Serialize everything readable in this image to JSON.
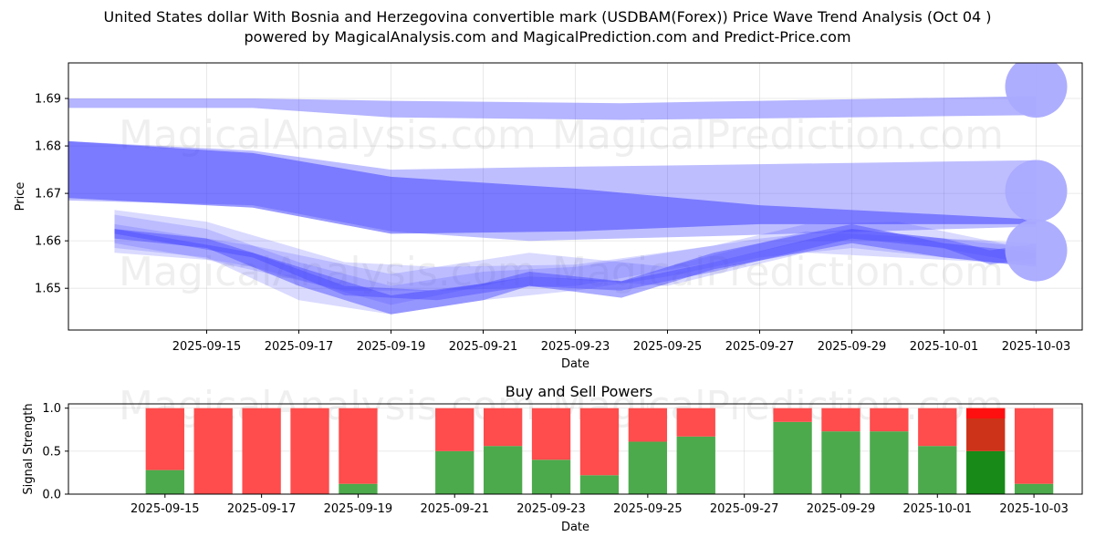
{
  "title_line1": "United States dollar With Bosnia and Herzegovina convertible mark (USDBAM(Forex)) Price Wave Trend Analysis (Oct 04 )",
  "title_line2": "powered by MagicalAnalysis.com and MagicalPrediction.com and Predict-Price.com",
  "watermarks": [
    "MagicalAnalysis.com",
    "MagicalPrediction.com"
  ],
  "chart_data": [
    {
      "type": "area",
      "name": "price-wave",
      "xlabel": "Date",
      "ylabel": "Price",
      "ylim": [
        1.6412,
        1.6975
      ],
      "xlim": [
        "2025-09-12",
        "2025-10-04"
      ],
      "x_ticks": [
        "2025-09-15",
        "2025-09-17",
        "2025-09-19",
        "2025-09-21",
        "2025-09-23",
        "2025-09-25",
        "2025-09-27",
        "2025-09-29",
        "2025-10-01",
        "2025-10-03"
      ],
      "y_ticks": [
        1.65,
        1.66,
        1.67,
        1.68,
        1.69
      ],
      "grid": true,
      "colors": {
        "band": "#4444ff",
        "marker": "#aaaaff"
      },
      "bands": [
        {
          "x": [
            "2025-09-12",
            "2025-09-16",
            "2025-09-19",
            "2025-09-24",
            "2025-09-27",
            "2025-10-03"
          ],
          "upper": [
            1.69,
            1.69,
            1.6895,
            1.689,
            1.6895,
            1.6905
          ],
          "lower": [
            1.688,
            1.688,
            1.686,
            1.6855,
            1.6858,
            1.6865
          ],
          "opacity": 0.4
        },
        {
          "x": [
            "2025-09-12",
            "2025-09-16",
            "2025-09-19",
            "2025-09-22",
            "2025-09-26",
            "2025-10-03"
          ],
          "upper": [
            1.681,
            1.679,
            1.675,
            1.6755,
            1.676,
            1.677
          ],
          "lower": [
            1.6685,
            1.6675,
            1.662,
            1.66,
            1.661,
            1.663
          ],
          "opacity": 0.35
        },
        {
          "x": [
            "2025-09-12",
            "2025-09-16",
            "2025-09-19",
            "2025-09-23",
            "2025-09-27",
            "2025-10-03"
          ],
          "upper": [
            1.681,
            1.6785,
            1.6735,
            1.671,
            1.6675,
            1.6645
          ],
          "lower": [
            1.669,
            1.667,
            1.6615,
            1.662,
            1.6635,
            1.6635
          ],
          "opacity": 0.55
        },
        {
          "x": [
            "2025-09-13",
            "2025-09-15",
            "2025-09-17",
            "2025-09-19",
            "2025-09-21",
            "2025-09-22",
            "2025-09-24",
            "2025-09-26",
            "2025-09-29",
            "2025-10-01",
            "2025-10-03"
          ],
          "upper": [
            1.6625,
            1.6605,
            1.6545,
            1.6485,
            1.651,
            1.6535,
            1.6515,
            1.6575,
            1.6635,
            1.6595,
            1.6575
          ],
          "lower": [
            1.6605,
            1.6585,
            1.6505,
            1.6445,
            1.6475,
            1.6505,
            1.648,
            1.654,
            1.6595,
            1.6565,
            1.6545
          ],
          "opacity": 0.45
        },
        {
          "x": [
            "2025-09-13",
            "2025-09-15",
            "2025-09-18",
            "2025-09-20",
            "2025-09-23",
            "2025-09-26",
            "2025-09-28",
            "2025-09-30",
            "2025-10-03"
          ],
          "upper": [
            1.6665,
            1.664,
            1.6555,
            1.6545,
            1.655,
            1.659,
            1.6635,
            1.664,
            1.658
          ],
          "lower": [
            1.6575,
            1.656,
            1.6495,
            1.6495,
            1.6505,
            1.6555,
            1.66,
            1.66,
            1.655
          ],
          "opacity": 0.2
        },
        {
          "x": [
            "2025-09-13",
            "2025-09-16",
            "2025-09-19",
            "2025-09-22",
            "2025-09-25",
            "2025-09-28",
            "2025-10-01",
            "2025-10-03"
          ],
          "upper": [
            1.6635,
            1.659,
            1.653,
            1.6575,
            1.6545,
            1.662,
            1.6605,
            1.6595
          ],
          "lower": [
            1.6595,
            1.6545,
            1.6465,
            1.6525,
            1.6505,
            1.6575,
            1.656,
            1.655
          ],
          "opacity": 0.2
        },
        {
          "x": [
            "2025-09-13",
            "2025-09-16",
            "2025-09-18",
            "2025-09-20",
            "2025-09-22",
            "2025-09-24",
            "2025-09-26",
            "2025-09-29",
            "2025-10-01",
            "2025-10-02",
            "2025-10-03"
          ],
          "upper": [
            1.6625,
            1.6575,
            1.6505,
            1.6495,
            1.6525,
            1.6515,
            1.6555,
            1.6625,
            1.6605,
            1.658,
            1.6595
          ],
          "lower": [
            1.6615,
            1.6565,
            1.6485,
            1.6475,
            1.6505,
            1.6495,
            1.6535,
            1.6605,
            1.6585,
            1.655,
            1.6565
          ],
          "opacity": 0.4
        },
        {
          "x": [
            "2025-09-13",
            "2025-09-15",
            "2025-09-17",
            "2025-09-19",
            "2025-09-21",
            "2025-09-23",
            "2025-09-25",
            "2025-09-27",
            "2025-09-29",
            "2025-10-01",
            "2025-10-03"
          ],
          "upper": [
            1.6655,
            1.6625,
            1.6555,
            1.6505,
            1.6535,
            1.6545,
            1.6575,
            1.6605,
            1.6625,
            1.6605,
            1.6585
          ],
          "lower": [
            1.6585,
            1.6565,
            1.6475,
            1.6445,
            1.6475,
            1.6495,
            1.6525,
            1.6565,
            1.6585,
            1.6565,
            1.6545
          ],
          "opacity": 0.2
        }
      ],
      "end_markers": [
        {
          "x": "2025-10-03",
          "y": 1.6925
        },
        {
          "x": "2025-10-03",
          "y": 1.6705
        },
        {
          "x": "2025-10-03",
          "y": 1.658
        }
      ]
    },
    {
      "type": "bar",
      "name": "buy-sell-powers",
      "title": "Buy and Sell Powers",
      "xlabel": "Date",
      "ylabel": "Signal Strength",
      "ylim": [
        0,
        1.05
      ],
      "xlim": [
        "2025-09-13",
        "2025-10-04"
      ],
      "x_ticks": [
        "2025-09-15",
        "2025-09-17",
        "2025-09-19",
        "2025-09-21",
        "2025-09-23",
        "2025-09-25",
        "2025-09-27",
        "2025-09-29",
        "2025-10-01",
        "2025-10-03"
      ],
      "y_ticks": [
        "0.0",
        "0.5",
        "1.0"
      ],
      "grid": true,
      "colors": {
        "buy": "#4caa4c",
        "sell": "#ff4c4c",
        "buy_highlight": "#178a17",
        "sell_highlight": "#cc3318",
        "sell_peak": "#ff1010"
      },
      "categories": [
        "2025-09-15",
        "2025-09-16",
        "2025-09-17",
        "2025-09-18",
        "2025-09-19",
        "2025-09-21",
        "2025-09-22",
        "2025-09-23",
        "2025-09-24",
        "2025-09-25",
        "2025-09-26",
        "2025-09-28",
        "2025-09-29",
        "2025-09-30",
        "2025-10-01",
        "2025-10-02",
        "2025-10-03"
      ],
      "series": [
        {
          "name": "Buy",
          "values": [
            0.28,
            0.0,
            0.0,
            0.0,
            0.12,
            0.5,
            0.56,
            0.4,
            0.22,
            0.61,
            0.67,
            0.84,
            0.73,
            0.73,
            0.56,
            0.5,
            0.12
          ]
        },
        {
          "name": "Sell",
          "values": [
            0.72,
            1.0,
            1.0,
            1.0,
            0.88,
            0.5,
            0.44,
            0.6,
            0.78,
            0.39,
            0.33,
            0.16,
            0.27,
            0.27,
            0.44,
            0.5,
            0.88
          ]
        }
      ],
      "highlight_category": "2025-10-02"
    }
  ]
}
